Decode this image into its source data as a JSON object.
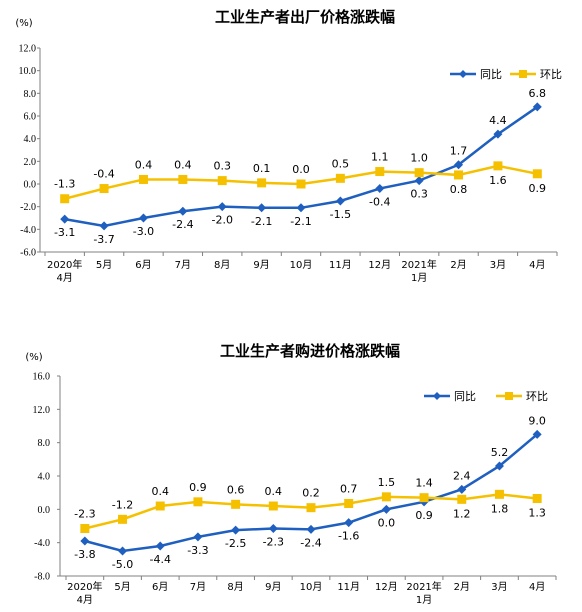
{
  "chart_data": [
    {
      "type": "line",
      "title": "工业生产者出厂价格涨跌幅",
      "unit": "(%)",
      "categories": [
        "2020年\n4月",
        "5月",
        "6月",
        "7月",
        "8月",
        "9月",
        "10月",
        "11月",
        "12月",
        "2021年\n1月",
        "2月",
        "3月",
        "4月"
      ],
      "ylim": [
        -6.0,
        12.0
      ],
      "yticks": [
        "12.0",
        "10.0",
        "8.0",
        "6.0",
        "4.0",
        "2.0",
        "0.0",
        "-2.0",
        "-4.0",
        "-6.0"
      ],
      "ytick_values": [
        12,
        10,
        8,
        6,
        4,
        2,
        0,
        -2,
        -4,
        -6
      ],
      "grid": false,
      "legend": "top-right",
      "series": [
        {
          "name": "同比",
          "color": "#1f5fbf",
          "marker": "diamond",
          "values": [
            -3.1,
            -3.7,
            -3.0,
            -2.4,
            -2.0,
            -2.1,
            -2.1,
            -1.5,
            -0.4,
            0.3,
            1.7,
            4.4,
            6.8
          ],
          "labels": [
            "-3.1",
            "-3.7",
            "-3.0",
            "-2.4",
            "-2.0",
            "-2.1",
            "-2.1",
            "-1.5",
            "-0.4",
            "0.3",
            "1.7",
            "4.4",
            "6.8"
          ]
        },
        {
          "name": "环比",
          "color": "#f5c000",
          "marker": "square",
          "values": [
            -1.3,
            -0.4,
            0.4,
            0.4,
            0.3,
            0.1,
            0.0,
            0.5,
            1.1,
            1.0,
            0.8,
            1.6,
            0.9
          ],
          "labels": [
            "-1.3",
            "-0.4",
            "0.4",
            "0.4",
            "0.3",
            "0.1",
            "0.0",
            "0.5",
            "1.1",
            "1.0",
            "0.8",
            "1.6",
            "0.9"
          ]
        }
      ]
    },
    {
      "type": "line",
      "title": "工业生产者购进价格涨跌幅",
      "unit": "(%)",
      "categories": [
        "2020年\n4月",
        "5月",
        "6月",
        "7月",
        "8月",
        "9月",
        "10月",
        "11月",
        "12月",
        "2021年\n1月",
        "2月",
        "3月",
        "4月"
      ],
      "ylim": [
        -8.0,
        16.0
      ],
      "yticks": [
        "16.0",
        "12.0",
        "8.0",
        "4.0",
        "0.0",
        "-4.0",
        "-8.0"
      ],
      "ytick_values": [
        16,
        12,
        8,
        4,
        0,
        -4,
        -8
      ],
      "grid": false,
      "legend": "top-right",
      "series": [
        {
          "name": "同比",
          "color": "#1f5fbf",
          "marker": "diamond",
          "values": [
            -3.8,
            -5.0,
            -4.4,
            -3.3,
            -2.5,
            -2.3,
            -2.4,
            -1.6,
            0.0,
            0.9,
            2.4,
            5.2,
            9.0
          ],
          "labels": [
            "-3.8",
            "-5.0",
            "-4.4",
            "-3.3",
            "-2.5",
            "-2.3",
            "-2.4",
            "-1.6",
            "0.0",
            "0.9",
            "2.4",
            "5.2",
            "9.0"
          ]
        },
        {
          "name": "环比",
          "color": "#f5c000",
          "marker": "square",
          "values": [
            -2.3,
            -1.2,
            0.4,
            0.9,
            0.6,
            0.4,
            0.2,
            0.7,
            1.5,
            1.4,
            1.2,
            1.8,
            1.3
          ],
          "labels": [
            "-2.3",
            "-1.2",
            "0.4",
            "0.9",
            "0.6",
            "0.4",
            "0.2",
            "0.7",
            "1.5",
            "1.4",
            "1.2",
            "1.8",
            "1.3"
          ]
        }
      ]
    }
  ]
}
